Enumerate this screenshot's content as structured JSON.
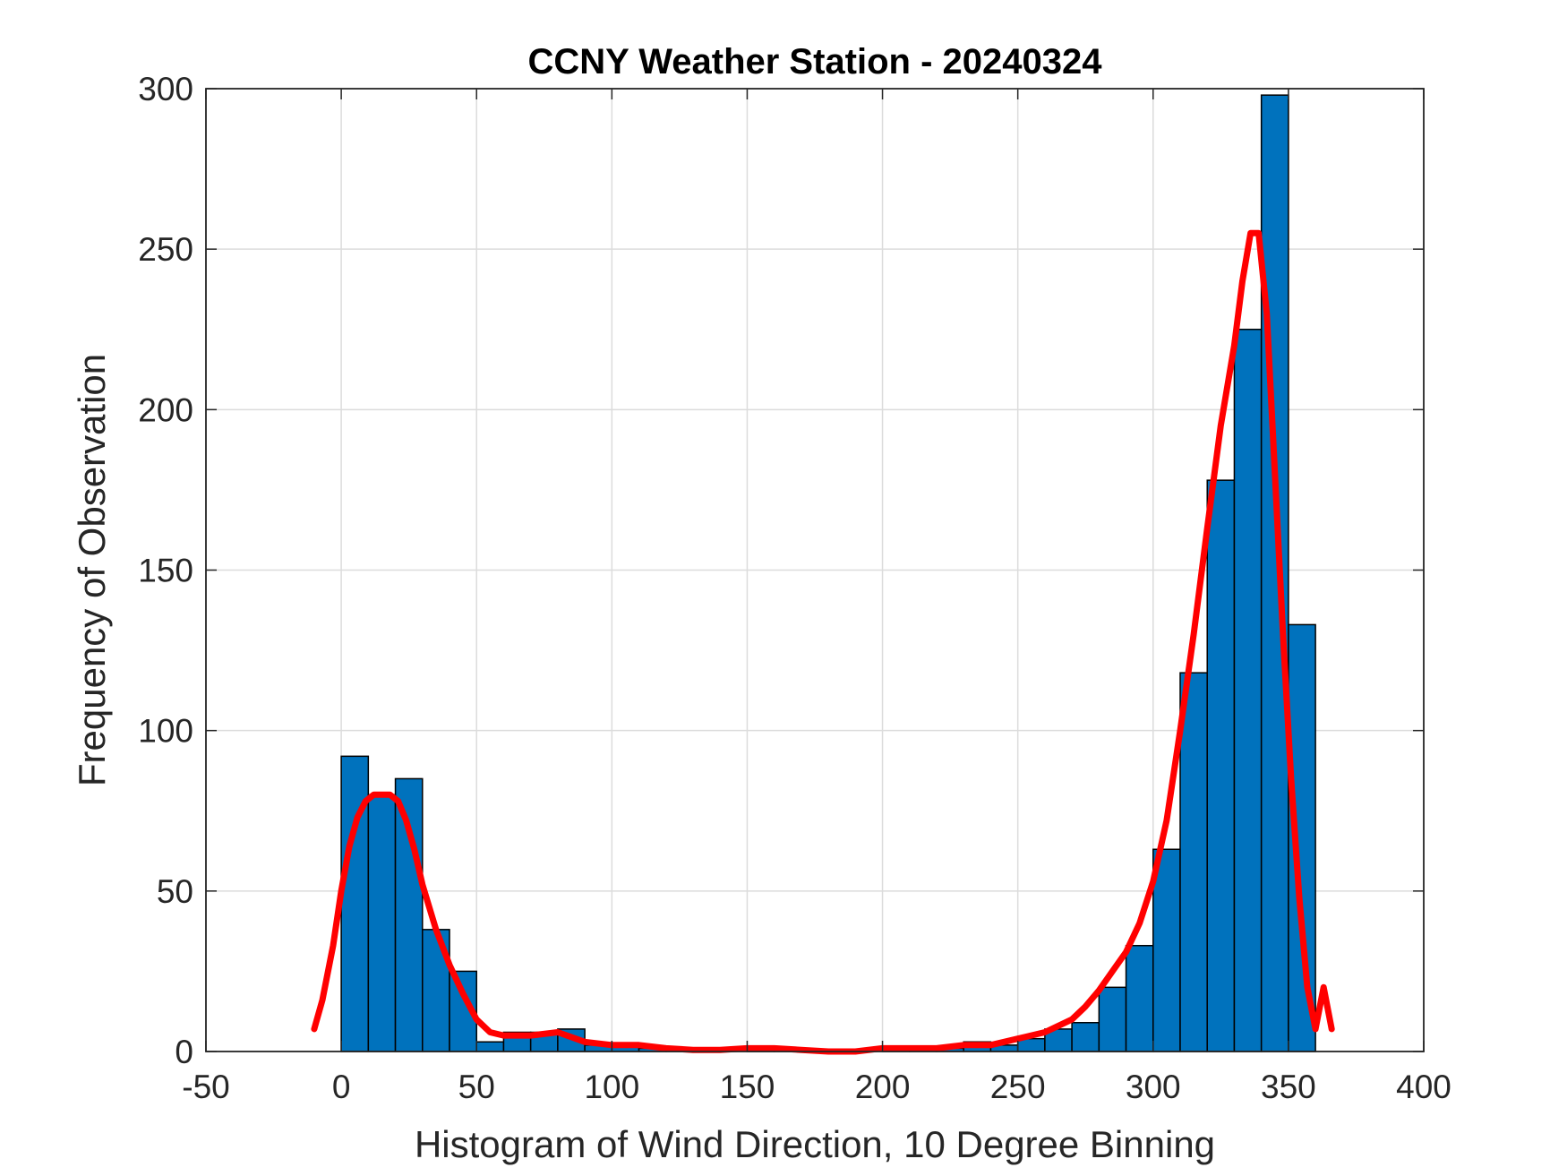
{
  "chart_data": {
    "type": "bar",
    "title": "CCNY Weather Station - 20240324",
    "xlabel": "Histogram of Wind Direction, 10 Degree Binning",
    "ylabel": "Frequency of Observation",
    "xlim": [
      -50,
      400
    ],
    "ylim": [
      0,
      300
    ],
    "xticks": [
      "-50",
      "0",
      "50",
      "100",
      "150",
      "200",
      "250",
      "300",
      "350",
      "400"
    ],
    "yticks": [
      "0",
      "50",
      "100",
      "150",
      "200",
      "250",
      "300"
    ],
    "grid": true,
    "bin_width": 10,
    "bar_color": "#0072BD",
    "bars": {
      "bin_start": [
        0,
        10,
        20,
        30,
        40,
        50,
        60,
        70,
        80,
        90,
        100,
        110,
        120,
        130,
        140,
        150,
        160,
        170,
        180,
        190,
        200,
        210,
        220,
        230,
        240,
        250,
        260,
        270,
        280,
        290,
        300,
        310,
        320,
        330,
        340,
        350
      ],
      "values": [
        92,
        80,
        85,
        38,
        25,
        3,
        6,
        6,
        7,
        2,
        2,
        1,
        1,
        1,
        0,
        1,
        1,
        0,
        0,
        0,
        1,
        1,
        1,
        3,
        2,
        4,
        7,
        9,
        20,
        33,
        63,
        118,
        178,
        225,
        298,
        133
      ]
    },
    "fit_color": "#FF0000",
    "fit_line": {
      "x": [
        -10,
        -7,
        -3,
        0,
        3,
        6,
        9,
        12,
        15,
        18,
        21,
        24,
        27,
        30,
        35,
        40,
        45,
        50,
        55,
        60,
        65,
        70,
        80,
        90,
        100,
        110,
        120,
        130,
        140,
        150,
        160,
        170,
        180,
        190,
        200,
        210,
        220,
        230,
        240,
        250,
        260,
        270,
        275,
        280,
        285,
        290,
        295,
        300,
        305,
        310,
        315,
        320,
        325,
        330,
        333,
        336,
        339,
        342,
        345,
        348,
        351,
        354,
        357,
        360,
        363,
        366
      ],
      "y": [
        7,
        16,
        33,
        50,
        64,
        73,
        78,
        80,
        80,
        80,
        78,
        72,
        63,
        52,
        38,
        27,
        18,
        10,
        6,
        5,
        5,
        5,
        6,
        3,
        2,
        2,
        1,
        0.5,
        0.5,
        1,
        1,
        0.5,
        0,
        0,
        1,
        1,
        1,
        2,
        2,
        4,
        6,
        10,
        14,
        19,
        25,
        31,
        40,
        53,
        72,
        100,
        130,
        163,
        195,
        220,
        240,
        255,
        255,
        230,
        180,
        130,
        85,
        48,
        20,
        7,
        20,
        7
      ]
    }
  }
}
